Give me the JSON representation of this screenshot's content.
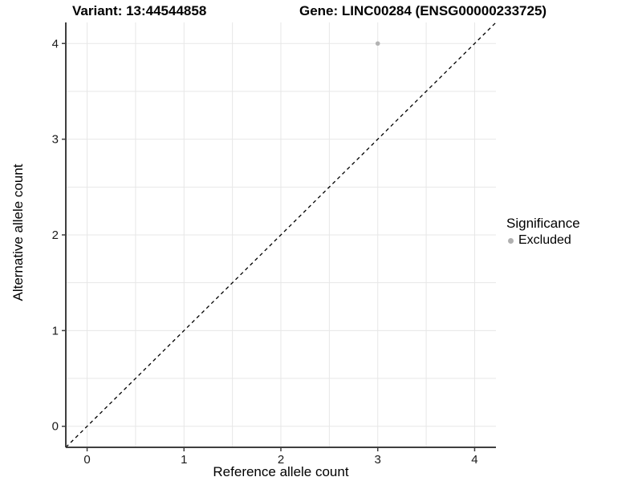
{
  "chart_data": {
    "type": "scatter",
    "title_variant": "Variant: 13:44544858",
    "title_gene": "Gene: LINC00284 (ENSG00000233725)",
    "xlabel": "Reference allele count",
    "ylabel": "Alternative allele count",
    "xlim": [
      -0.22,
      4.22
    ],
    "ylim": [
      -0.22,
      4.22
    ],
    "xticks": [
      0,
      1,
      2,
      3,
      4
    ],
    "yticks": [
      0,
      1,
      2,
      3,
      4
    ],
    "minor_grid_step": 0.5,
    "grid": true,
    "series": [
      {
        "name": "Excluded",
        "color": "#b3b3b3",
        "points": [
          [
            3,
            4
          ]
        ]
      }
    ],
    "reference_line": {
      "slope": 1,
      "intercept": 0,
      "style": "dashed",
      "color": "#000000"
    },
    "legend": {
      "title": "Significance",
      "position": "right",
      "items": [
        {
          "label": "Excluded",
          "color": "#b0b0b0"
        }
      ]
    }
  },
  "colors": {
    "grid": "#e7e7e7",
    "axis_line": "#3f3f3f",
    "tick_label": "#1a1a1a",
    "point": "#b3b3b3"
  }
}
